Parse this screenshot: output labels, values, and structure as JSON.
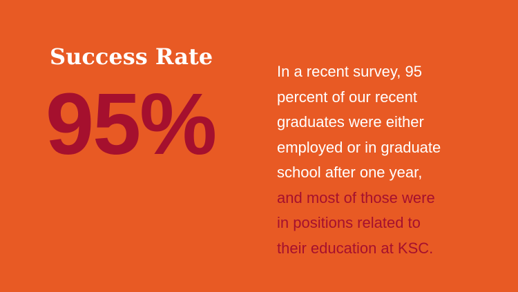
{
  "card": {
    "heading": "Success Rate",
    "stat": "95%",
    "body_lines_white": [
      "In a recent survey, 95",
      "percent of our recent",
      "graduates were either",
      "employed or in graduate",
      "school after one year,"
    ],
    "body_lines_accent": [
      "and most of those were",
      "in positions related to",
      "their education at KSC."
    ]
  },
  "colors": {
    "background": "#e85a24",
    "accent": "#a5102e",
    "text": "#ffffff"
  }
}
